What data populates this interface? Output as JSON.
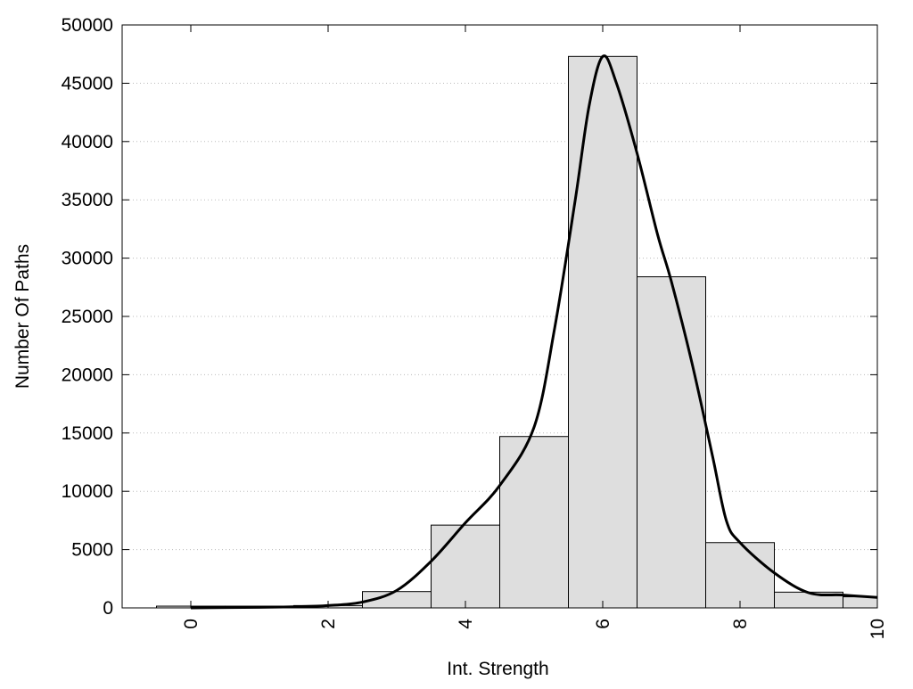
{
  "chart_data": {
    "type": "bar",
    "title": "",
    "xlabel": "Int. Strength",
    "ylabel": "Number Of Paths",
    "xlim": [
      -1,
      10
    ],
    "ylim": [
      0,
      50000
    ],
    "grid": true,
    "x_ticks": [
      "0",
      "2",
      "4",
      "6",
      "8",
      "10"
    ],
    "y_ticks": [
      "0",
      "5000",
      "10000",
      "15000",
      "20000",
      "25000",
      "30000",
      "35000",
      "40000",
      "45000",
      "50000"
    ],
    "categories": [
      0,
      1,
      2,
      3,
      4,
      5,
      6,
      7,
      8,
      9,
      10
    ],
    "values": [
      150,
      150,
      200,
      1400,
      7100,
      14700,
      47300,
      28400,
      5600,
      1350,
      950
    ],
    "bar_width": 1,
    "curve": {
      "x": [
        0,
        1,
        1.5,
        2,
        2.5,
        3,
        3.5,
        4,
        4.5,
        5,
        5.3,
        5.6,
        5.8,
        6,
        6.2,
        6.5,
        6.8,
        7,
        7.3,
        7.6,
        7.8,
        8,
        8.5,
        9,
        9.5,
        10
      ],
      "y": [
        0,
        50,
        100,
        200,
        500,
        1500,
        4000,
        7300,
        10500,
        15500,
        24000,
        35000,
        43000,
        47300,
        45000,
        39000,
        32000,
        28000,
        21000,
        13000,
        7500,
        5600,
        3000,
        1300,
        1100,
        900
      ]
    }
  }
}
